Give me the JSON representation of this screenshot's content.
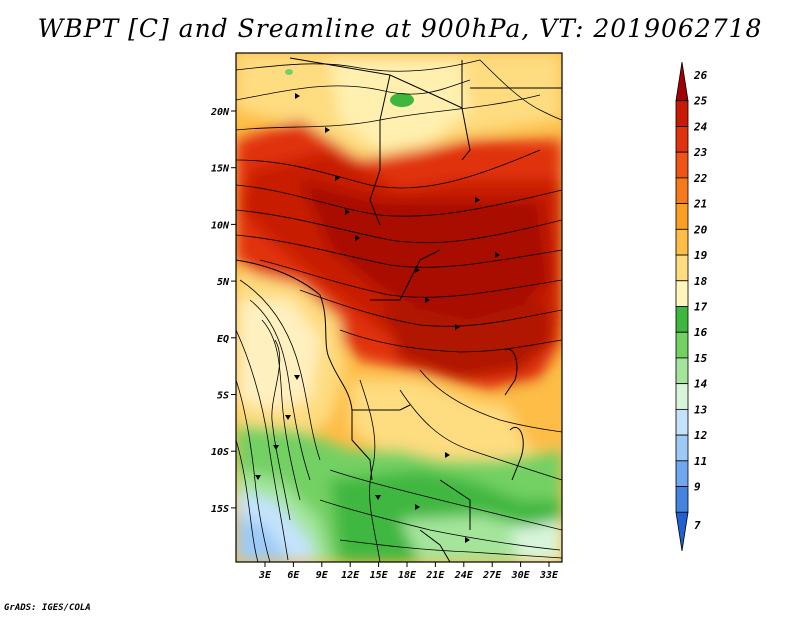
{
  "title": "WBPT [C] and Sreamline at 900hPa, VT: 2019062718",
  "footer": "GrADS: IGES/COLA",
  "map": {
    "lat_labels": [
      "20N",
      "15N",
      "10N",
      "5N",
      "EQ",
      "5S",
      "10S",
      "15S"
    ],
    "lon_labels": [
      "3E",
      "6E",
      "9E",
      "12E",
      "15E",
      "18E",
      "21E",
      "24E",
      "27E",
      "30E",
      "33E"
    ]
  },
  "colorbar": {
    "labels": [
      "26",
      "25",
      "24",
      "23",
      "22",
      "21",
      "20",
      "19",
      "18",
      "17",
      "16",
      "15",
      "14",
      "13",
      "12",
      "11",
      "9",
      "7"
    ],
    "colors": [
      "#a10000",
      "#c81a05",
      "#e0320f",
      "#ee5416",
      "#f67a1b",
      "#fb9f24",
      "#fdbd47",
      "#fedc80",
      "#fff5bd",
      "#3fb73f",
      "#73d063",
      "#a4e59b",
      "#d8f5dc",
      "#c4e3fb",
      "#9dcaf7",
      "#6fa8ef",
      "#4484e0",
      "#2060d0"
    ]
  }
}
